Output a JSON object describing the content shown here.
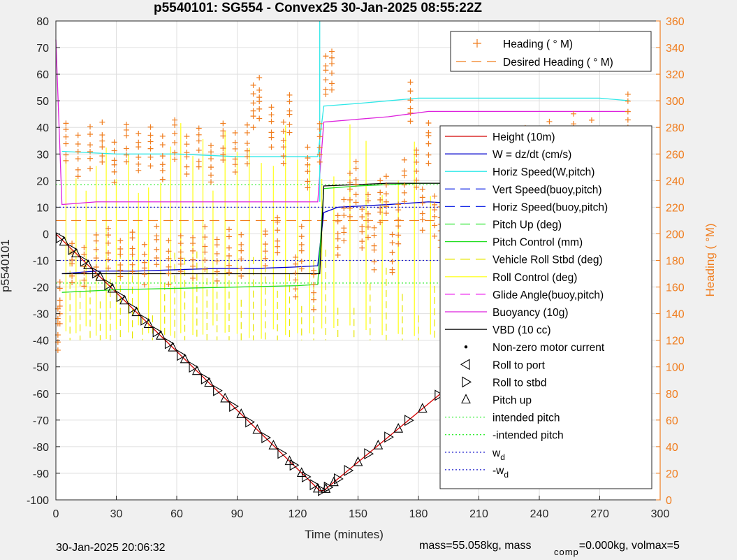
{
  "chart_data": {
    "type": "line",
    "title": "p5540101: SG554 - Convex25 30-Jan-2025 08:55:22Z",
    "xlabel": "Time (minutes)",
    "ylabel": "p5540101",
    "y2label": "Heading (  °M)",
    "xlim": [
      0,
      300
    ],
    "ylim": [
      -100,
      80
    ],
    "y2lim": [
      0,
      360
    ],
    "xticks": [
      0,
      30,
      60,
      90,
      120,
      150,
      180,
      210,
      240,
      270,
      300
    ],
    "yticks": [
      -100,
      -90,
      -80,
      -70,
      -60,
      -50,
      -40,
      -30,
      -20,
      -10,
      0,
      10,
      20,
      30,
      40,
      50,
      60,
      70,
      80
    ],
    "y2ticks": [
      0,
      20,
      40,
      60,
      80,
      100,
      120,
      140,
      160,
      180,
      200,
      220,
      240,
      260,
      280,
      300,
      320,
      340,
      360
    ],
    "grid": true,
    "legend_right_placement": "inside right",
    "legend_heading_placement": "top-right",
    "legend_heading": [
      {
        "label": "Heading (   ° M)",
        "color": "#f07d1e",
        "style": "plus"
      },
      {
        "label": "Desired Heading (     ° M)",
        "color": "#f07d1e",
        "style": "dash"
      }
    ],
    "legend": [
      {
        "label": "Height (10m)",
        "color": "#d40000",
        "style": "solid"
      },
      {
        "label": "W = dz/dt (cm/s)",
        "color": "#0000cc",
        "style": "solid"
      },
      {
        "label": "Horiz Speed(W,pitch)",
        "color": "#2ee8e8",
        "style": "solid"
      },
      {
        "label": "Vert Speed(buoy,pitch)",
        "color": "#1a2ee6",
        "style": "dash"
      },
      {
        "label": "Horiz Speed(buoy,pitch)",
        "color": "#1a2ee6",
        "style": "dash"
      },
      {
        "label": "Pitch Up (deg)",
        "color": "#2ee633",
        "style": "dash"
      },
      {
        "label": "Pitch Control (mm)",
        "color": "#22dd22",
        "style": "solid"
      },
      {
        "label": "Vehicle Roll Stbd (deg)",
        "color": "#e6e600",
        "style": "dash"
      },
      {
        "label": "Roll Control (deg)",
        "color": "#ffff33",
        "style": "solid"
      },
      {
        "label": "Glide Angle(buoy,pitch)",
        "color": "#ee22ee",
        "style": "dash"
      },
      {
        "label": "Buoyancy (10g)",
        "color": "#dd22dd",
        "style": "solid"
      },
      {
        "label": "VBD (10 cc)",
        "color": "#000000",
        "style": "solid"
      },
      {
        "label": "Non-zero motor current",
        "color": "#000000",
        "style": "dot"
      },
      {
        "label": "Roll to port",
        "color": "#000000",
        "style": "tri-left"
      },
      {
        "label": "Roll to stbd",
        "color": "#000000",
        "style": "tri-right"
      },
      {
        "label": "Pitch up",
        "color": "#000000",
        "style": "tri-up"
      },
      {
        "label": "intended pitch",
        "color": "#33ee33",
        "style": "dotted"
      },
      {
        "label": "-intended pitch",
        "color": "#33ee33",
        "style": "dotted"
      },
      {
        "label": "w",
        "sub": "d",
        "color": "#1a1acc",
        "style": "dotted"
      },
      {
        "label": "-w",
        "sub": "d",
        "color": "#1a1acc",
        "style": "dotted"
      }
    ],
    "series": [
      {
        "name": "Height (10m)",
        "axis": "left",
        "x": [
          0,
          131,
          133,
          285
        ],
        "y": [
          0,
          -96.5,
          -96.5,
          -1
        ]
      },
      {
        "name": "W = dz/dt (cm/s)",
        "axis": "left",
        "x": [
          3,
          20,
          40,
          60,
          80,
          100,
          118,
          130,
          133,
          140,
          165,
          185,
          210,
          240,
          270,
          285
        ],
        "y": [
          -15,
          -14,
          -14,
          -13.5,
          -13,
          -13,
          -12.5,
          -12,
          8,
          10,
          11,
          12,
          11,
          10,
          10,
          9.5
        ]
      },
      {
        "name": "Horiz Speed(W,pitch)",
        "axis": "left",
        "x": [
          3,
          30,
          60,
          90,
          120,
          130,
          133,
          150,
          165,
          180,
          210,
          240,
          270,
          285
        ],
        "y": [
          31,
          30,
          30,
          29,
          29,
          29,
          48,
          49,
          50,
          51,
          51,
          51,
          51,
          50
        ]
      },
      {
        "name": "Pitch Control (mm)",
        "axis": "left",
        "x": [
          3,
          30,
          60,
          90,
          120,
          130,
          133,
          150,
          180,
          210,
          240,
          285
        ],
        "y": [
          -22,
          -21,
          -20.5,
          -20,
          -19.5,
          -19,
          17,
          18,
          19,
          19,
          19,
          18
        ]
      },
      {
        "name": "Buoyancy (10g)",
        "axis": "left",
        "x": [
          0,
          3,
          20,
          60,
          130,
          133,
          165,
          175,
          185,
          285
        ],
        "y": [
          73,
          11,
          12,
          12,
          12,
          42,
          44,
          45,
          46,
          46
        ]
      },
      {
        "name": "VBD (10 cc)",
        "axis": "left",
        "x": [
          3,
          131,
          133,
          165,
          285
        ],
        "y": [
          -15,
          -15,
          18,
          19,
          19
        ]
      },
      {
        "name": "Desired Heading (     ° M)",
        "axis": "right",
        "x": [
          0,
          130,
          133,
          285
        ],
        "y": [
          210,
          210,
          210,
          210
        ]
      },
      {
        "name": "intended pitch",
        "axis": "left",
        "x": [
          0,
          285
        ],
        "y": [
          18.5,
          18.5
        ]
      },
      {
        "name": "-intended pitch",
        "axis": "left",
        "x": [
          0,
          285
        ],
        "y": [
          -18.5,
          -18.5
        ]
      },
      {
        "name": "w",
        "axis": "left",
        "x": [
          0,
          285
        ],
        "y": [
          10,
          10
        ]
      },
      {
        "name": "-w",
        "axis": "left",
        "x": [
          0,
          285
        ],
        "y": [
          -10,
          -10
        ]
      }
    ],
    "markers": {
      "tri_right_x": [
        2,
        8,
        14,
        20,
        26,
        32,
        38,
        44,
        50,
        56,
        62,
        68,
        74,
        80,
        88,
        96,
        104,
        112,
        118,
        124,
        128,
        132,
        135,
        140,
        145,
        155,
        165,
        175,
        190,
        205,
        215,
        225,
        235,
        245,
        255,
        265,
        275,
        283
      ],
      "tri_up_x": [
        4,
        10,
        16,
        22,
        28,
        34,
        40,
        46,
        52,
        58,
        64,
        70,
        76,
        84,
        92,
        100,
        108,
        116,
        122,
        130,
        134,
        138,
        150,
        160,
        170,
        182,
        195,
        208,
        220,
        230,
        240,
        250,
        260,
        270,
        280,
        285
      ]
    },
    "heading_points": {
      "x": [
        1,
        2,
        5,
        8,
        11,
        14,
        17,
        20,
        23,
        26,
        29,
        32,
        35,
        38,
        41,
        44,
        47,
        50,
        53,
        56,
        59,
        62,
        65,
        68,
        71,
        74,
        77,
        80,
        83,
        86,
        89,
        92,
        95,
        98,
        101,
        104,
        107,
        110,
        113,
        116,
        119,
        122,
        125,
        128,
        131,
        134,
        137,
        140,
        143,
        146,
        149,
        152,
        155,
        158,
        161,
        164,
        167,
        170,
        173,
        176,
        179,
        182,
        185,
        188,
        191,
        194,
        197,
        200,
        203,
        206,
        209,
        212,
        215,
        218,
        221,
        224,
        227,
        230,
        233,
        236,
        239,
        242,
        245,
        248,
        251,
        254,
        257,
        260,
        263,
        266,
        269,
        272,
        275,
        278,
        281,
        284
      ],
      "y": [
        130,
        150,
        270,
        180,
        260,
        175,
        265,
        185,
        268,
        190,
        255,
        182,
        270,
        188,
        262,
        178,
        268,
        192,
        258,
        180,
        272,
        186,
        260,
        184,
        266,
        190,
        254,
        182,
        270,
        188,
        262,
        185,
        268,
        298,
        302,
        190,
        282,
        200,
        270,
        292,
        170,
        190,
        250,
        160,
        270,
        320,
        325,
        200,
        210,
        230,
        240,
        205,
        215,
        190,
        225,
        230,
        185,
        210,
        240,
        300,
        250,
        220,
        270,
        215,
        205,
        230,
        250,
        210,
        225,
        240,
        200,
        215,
        230,
        245,
        260,
        220,
        235,
        250,
        265,
        240,
        225,
        255,
        270,
        230,
        245,
        260,
        275,
        240,
        255,
        270,
        250,
        230,
        260,
        190,
        250,
        290
      ]
    },
    "roll_control_x": [
      5,
      10,
      15,
      20,
      25,
      30,
      36,
      41,
      46,
      52,
      57,
      62,
      68,
      73,
      78,
      84,
      90,
      96,
      102,
      108,
      114,
      120,
      126,
      132,
      138,
      146,
      154,
      162,
      170,
      178,
      186,
      194,
      202,
      210,
      218,
      226,
      234,
      242,
      250,
      258,
      266,
      274,
      282
    ]
  },
  "footer": {
    "timestamp": "30-Jan-2025 20:06:32",
    "mass_text": "mass=55.058kg, mass",
    "comp_sub": "comp",
    "comp_text": "=0.000kg, volmax=5"
  }
}
